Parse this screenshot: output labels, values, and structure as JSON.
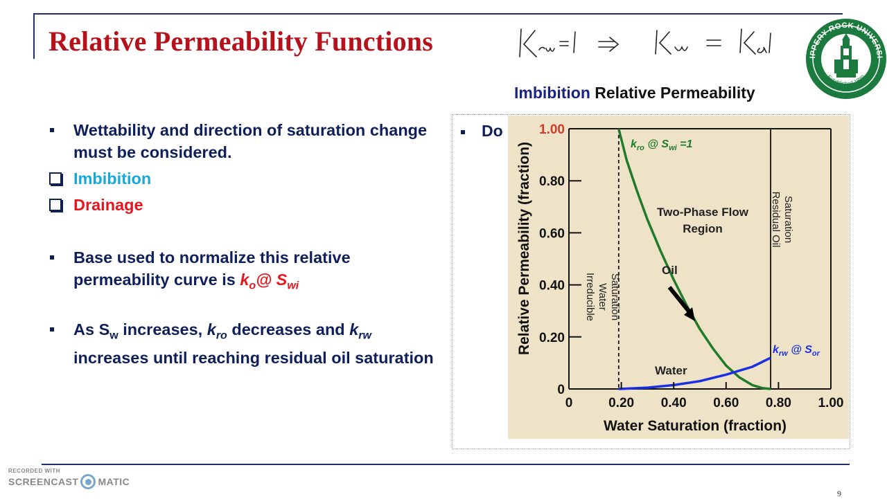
{
  "slide": {
    "title": "Relative Permeability Functions",
    "page_number": "9",
    "handwritten_note": "Krw=1 => Kw = Kab"
  },
  "logo": {
    "university": "SLIPPERY ROCK UNIVERSITY",
    "established": "Established 1889",
    "color": "#1b7a3e"
  },
  "bullets": {
    "wettability": "Wettability and direction of saturation change must be considered.",
    "imbibition": "Imbibition",
    "drainage": "Drainage",
    "base_prefix": "Base used to normalize this relative permeability curve is ",
    "base_k": "k",
    "base_k_sub": "o",
    "base_at": "@ S",
    "base_s_sub": "wi",
    "as_p1": "As S",
    "as_p1_sub": "w",
    "as_p2": " increases, ",
    "as_k1": "k",
    "as_k1_sub": "ro",
    "as_p3": " decreases and ",
    "as_k2": "k",
    "as_k2_sub": "rw",
    "as_p4": " increases until reaching residual oil saturation",
    "right_partial": "Do"
  },
  "chart_title": {
    "part1": "Imbibition",
    "part2": " Relative Permeability"
  },
  "chart_data": {
    "type": "line",
    "xlabel": "Water Saturation (fraction)",
    "ylabel": "Relative Permeability (fraction)",
    "xlim": [
      0,
      1.0
    ],
    "ylim": [
      0,
      1.0
    ],
    "xticks": [
      "0",
      "0.20",
      "0.40",
      "0.60",
      "0.80",
      "1.00"
    ],
    "yticks": [
      "0",
      "0.20",
      "0.40",
      "0.60",
      "0.80",
      "1.00"
    ],
    "series": [
      {
        "name": "Oil",
        "color": "#1f7a2a",
        "x": [
          0.19,
          0.22,
          0.26,
          0.3,
          0.35,
          0.4,
          0.45,
          0.5,
          0.55,
          0.6,
          0.65,
          0.7,
          0.74,
          0.77
        ],
        "y": [
          1.0,
          0.88,
          0.76,
          0.65,
          0.53,
          0.42,
          0.32,
          0.23,
          0.155,
          0.09,
          0.045,
          0.015,
          0.003,
          0.0
        ]
      },
      {
        "name": "Water",
        "color": "#1a2fe0",
        "x": [
          0.19,
          0.3,
          0.4,
          0.5,
          0.6,
          0.7,
          0.77
        ],
        "y": [
          0.0,
          0.005,
          0.015,
          0.03,
          0.055,
          0.085,
          0.12
        ]
      }
    ],
    "lines": [
      {
        "x": 0.19,
        "style": "dashed"
      },
      {
        "x": 0.77,
        "style": "solid"
      }
    ],
    "annotations": {
      "kro_label": "k",
      "kro_sub": "ro",
      "kro_mid": " @ S",
      "kro_sub2": "wi",
      "kro_end": " =1",
      "krw_label": "k",
      "krw_sub": "rw",
      "krw_mid": " @ S",
      "krw_sub2": "or",
      "two_phase_1": "Two-Phase Flow",
      "two_phase_2": "Region",
      "oil": "Oil",
      "water": "Water",
      "irreducible_1": "Irreducible",
      "irreducible_2": "Water",
      "irreducible_3": "Saturation",
      "residual_1": "Residual Oil",
      "residual_2": "Saturation"
    },
    "background": "#eee3c7",
    "grid": false
  },
  "watermark": {
    "line1": "RECORDED WITH",
    "line2a": "SCREENCAST",
    "line2b": "MATIC"
  }
}
